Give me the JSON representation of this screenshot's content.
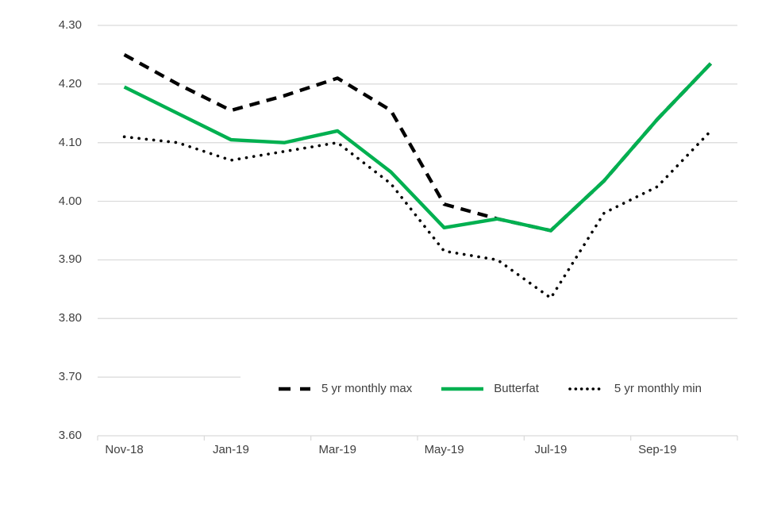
{
  "chart_data": {
    "type": "line",
    "categories": [
      "Nov-18",
      "Dec-18",
      "Jan-19",
      "Feb-19",
      "Mar-19",
      "Apr-19",
      "May-19",
      "Jun-19",
      "Jul-19",
      "Aug-19",
      "Sep-19",
      "Oct-19"
    ],
    "x_axis_tick_labels": [
      "Nov-18",
      "Jan-19",
      "Mar-19",
      "May-19",
      "Jul-19",
      "Sep-19"
    ],
    "y_axis_tick_labels": [
      "4.30",
      "4.20",
      "4.10",
      "4.00",
      "3.90",
      "3.80",
      "3.70",
      "3.60"
    ],
    "ylim": [
      3.6,
      4.3
    ],
    "y_tick_step": 0.1,
    "grid": "horizontal-only",
    "legend_position": "inside-bottom",
    "axis_color": "#d9d9d9",
    "label_color": "#404040",
    "series": [
      {
        "name": "5 yr monthly max",
        "style": "dashed",
        "color": "#000000",
        "values": [
          4.25,
          4.2,
          4.155,
          4.18,
          4.21,
          4.155,
          3.995,
          3.97,
          3.95,
          4.035,
          4.14,
          4.235
        ]
      },
      {
        "name": "Butterfat",
        "style": "solid",
        "color": "#00b050",
        "values": [
          4.195,
          4.15,
          4.105,
          4.1,
          4.12,
          4.05,
          3.955,
          3.97,
          3.95,
          4.035,
          4.14,
          4.235
        ]
      },
      {
        "name": "5 yr monthly min",
        "style": "dotted",
        "color": "#000000",
        "values": [
          4.11,
          4.1,
          4.07,
          4.085,
          4.1,
          4.03,
          3.915,
          3.9,
          3.835,
          3.98,
          4.025,
          4.12
        ]
      }
    ]
  }
}
